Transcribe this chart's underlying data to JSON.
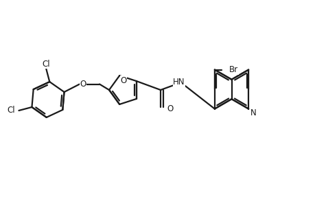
{
  "bg_color": "#ffffff",
  "line_color": "#1a1a1a",
  "line_width": 1.6,
  "figsize": [
    4.6,
    3.0
  ],
  "dpi": 100,
  "xlim": [
    0,
    9.2
  ],
  "ylim": [
    0,
    6.0
  ]
}
